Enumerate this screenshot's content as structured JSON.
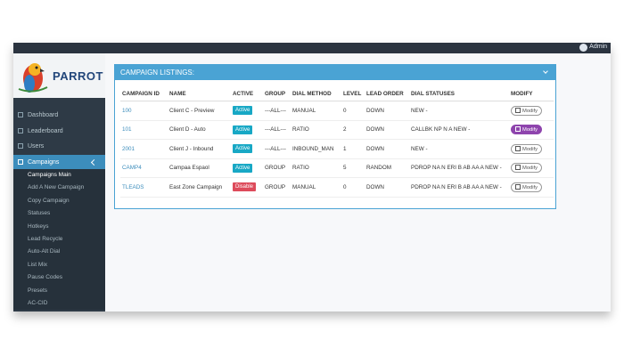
{
  "topbar": {
    "user": "Admin"
  },
  "logo": {
    "text": "PARROT"
  },
  "sidebar": {
    "items": [
      "Dashboard",
      "Leaderboard",
      "Users",
      "Campaigns"
    ],
    "submenu": [
      "Campaigns Main",
      "Add A New Campaign",
      "Copy Campaign",
      "Statuses",
      "Hotkeys",
      "Lead Recycle",
      "Auto-Alt Dial",
      "List Mix",
      "Pause Codes",
      "Presets",
      "AC-CID"
    ]
  },
  "panel": {
    "title": "CAMPAIGN LISTINGS:",
    "table": {
      "columns": [
        "CAMPAIGN ID",
        "NAME",
        "ACTIVE",
        "GROUP",
        "DIAL METHOD",
        "LEVEL",
        "LEAD ORDER",
        "DIAL STATUSES",
        "MODIFY"
      ],
      "rows": [
        [
          "100",
          "Client C - Preview",
          "Active",
          "---ALL---",
          "MANUAL",
          "0",
          "DOWN",
          "NEW -",
          "Modify"
        ],
        [
          "101",
          "Client D - Auto",
          "Active",
          "---ALL---",
          "RATIO",
          "2",
          "DOWN",
          "CALLBK NP N A NEW -",
          "Modify"
        ],
        [
          "2001",
          "Client J - Inbound",
          "Active",
          "---ALL---",
          "INBOUND_MAN",
          "1",
          "DOWN",
          "NEW -",
          "Modify"
        ],
        [
          "CAMP4",
          "Campaa Espaol",
          "Active",
          "GROUP",
          "RATIO",
          "5",
          "RANDOM",
          "PDROP NA N ERI B AB AA A NEW -",
          "Modify"
        ],
        [
          "TLEADS",
          "East Zone Campaign",
          "Disable",
          "GROUP",
          "MANUAL",
          "0",
          "DOWN",
          "PDROP NA N ERI B AB AA A NEW -",
          "Modify"
        ]
      ]
    }
  }
}
